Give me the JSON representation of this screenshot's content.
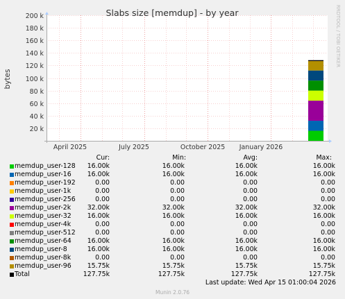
{
  "chart_data": {
    "type": "bar",
    "stacked": true,
    "title": "Slabs size [memdup] - by year",
    "ylabel": "bytes",
    "ylim": [
      0,
      200000
    ],
    "y_ticks": [
      20000,
      40000,
      60000,
      80000,
      100000,
      120000,
      140000,
      160000,
      180000,
      200000
    ],
    "y_tick_labels": [
      "20 k",
      "40 k",
      "60 k",
      "80 k",
      "100 k",
      "120 k",
      "140 k",
      "160 k",
      "180 k",
      "200 k"
    ],
    "x_tick_labels": [
      "April 2025",
      "July 2025",
      "October 2025",
      "January 2026"
    ],
    "grid": true,
    "side_label": "RRDTOOL / TOBI OETIKER",
    "series": [
      {
        "name": "memdup_user-128",
        "color": "#00cc00",
        "values": [
          16000
        ]
      },
      {
        "name": "memdup_user-16",
        "color": "#0066b3",
        "values": [
          16000
        ]
      },
      {
        "name": "memdup_user-192",
        "color": "#ff8000",
        "values": [
          0
        ]
      },
      {
        "name": "memdup_user-1k",
        "color": "#ffcc00",
        "values": [
          0
        ]
      },
      {
        "name": "memdup_user-256",
        "color": "#330099",
        "values": [
          0
        ]
      },
      {
        "name": "memdup_user-2k",
        "color": "#990099",
        "values": [
          32000
        ]
      },
      {
        "name": "memdup_user-32",
        "color": "#ccff00",
        "values": [
          16000
        ]
      },
      {
        "name": "memdup_user-4k",
        "color": "#ff0000",
        "values": [
          0
        ]
      },
      {
        "name": "memdup_user-512",
        "color": "#808080",
        "values": [
          0
        ]
      },
      {
        "name": "memdup_user-64",
        "color": "#008f00",
        "values": [
          16000
        ]
      },
      {
        "name": "memdup_user-8",
        "color": "#00487d",
        "values": [
          16000
        ]
      },
      {
        "name": "memdup_user-8k",
        "color": "#b35a00",
        "values": [
          0
        ]
      },
      {
        "name": "memdup_user-96",
        "color": "#b38f00",
        "values": [
          15750
        ]
      }
    ],
    "total": {
      "name": "Total",
      "color": "#000000",
      "value": 127750
    }
  },
  "legend": {
    "headers": {
      "cur": "Cur:",
      "min": "Min:",
      "avg": "Avg:",
      "max": "Max:"
    },
    "rows": [
      {
        "name": "memdup_user-128",
        "color": "#00cc00",
        "cur": "16.00k",
        "min": "16.00k",
        "avg": "16.00k",
        "max": "16.00k"
      },
      {
        "name": "memdup_user-16",
        "color": "#0066b3",
        "cur": "16.00k",
        "min": "16.00k",
        "avg": "16.00k",
        "max": "16.00k"
      },
      {
        "name": "memdup_user-192",
        "color": "#ff8000",
        "cur": "0.00",
        "min": "0.00",
        "avg": "0.00",
        "max": "0.00"
      },
      {
        "name": "memdup_user-1k",
        "color": "#ffcc00",
        "cur": "0.00",
        "min": "0.00",
        "avg": "0.00",
        "max": "0.00"
      },
      {
        "name": "memdup_user-256",
        "color": "#330099",
        "cur": "0.00",
        "min": "0.00",
        "avg": "0.00",
        "max": "0.00"
      },
      {
        "name": "memdup_user-2k",
        "color": "#990099",
        "cur": "32.00k",
        "min": "32.00k",
        "avg": "32.00k",
        "max": "32.00k"
      },
      {
        "name": "memdup_user-32",
        "color": "#ccff00",
        "cur": "16.00k",
        "min": "16.00k",
        "avg": "16.00k",
        "max": "16.00k"
      },
      {
        "name": "memdup_user-4k",
        "color": "#ff0000",
        "cur": "0.00",
        "min": "0.00",
        "avg": "0.00",
        "max": "0.00"
      },
      {
        "name": "memdup_user-512",
        "color": "#808080",
        "cur": "0.00",
        "min": "0.00",
        "avg": "0.00",
        "max": "0.00"
      },
      {
        "name": "memdup_user-64",
        "color": "#008f00",
        "cur": "16.00k",
        "min": "16.00k",
        "avg": "16.00k",
        "max": "16.00k"
      },
      {
        "name": "memdup_user-8",
        "color": "#00487d",
        "cur": "16.00k",
        "min": "16.00k",
        "avg": "16.00k",
        "max": "16.00k"
      },
      {
        "name": "memdup_user-8k",
        "color": "#b35a00",
        "cur": "0.00",
        "min": "0.00",
        "avg": "0.00",
        "max": "0.00"
      },
      {
        "name": "memdup_user-96",
        "color": "#b38f00",
        "cur": "15.75k",
        "min": "15.75k",
        "avg": "15.75k",
        "max": "15.75k"
      },
      {
        "name": "Total",
        "color": "#000000",
        "cur": "127.75k",
        "min": "127.75k",
        "avg": "127.75k",
        "max": "127.75k"
      }
    ]
  },
  "footer": {
    "last_update": "Last update: Wed Apr 15 01:00:04 2026",
    "munin": "Munin 2.0.76"
  }
}
